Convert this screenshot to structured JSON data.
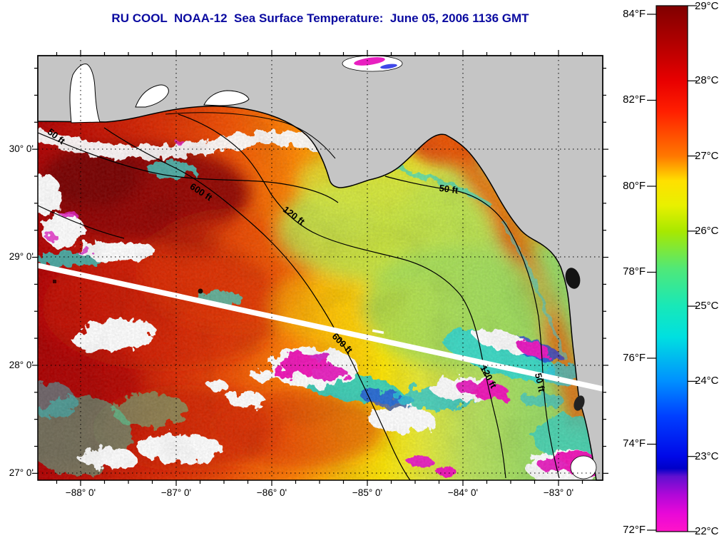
{
  "title": "RU COOL  NOAA-12  Sea Surface Temperature:  June 05, 2006 1136 GMT",
  "colors": {
    "title_text": "#0A0AA0",
    "land": "#C5C5C5",
    "coastline": "#000000",
    "scan_gap_streak": "#FFFFFF",
    "grid": "#000000"
  },
  "map": {
    "x_tick_labels": [
      "−88° 0'",
      "−87° 0'",
      "−86° 0'",
      "−85° 0'",
      "−84° 0'",
      "−83° 0'"
    ],
    "y_tick_labels": [
      "30° 0'",
      "29° 0'",
      "28° 0'",
      "27° 0'"
    ],
    "contour_labels": [
      "50 ft",
      "600 ft",
      "120 ft",
      "50 ft",
      "600 ft",
      "120 ft",
      "50 ft"
    ]
  },
  "colorbar": {
    "celsius_labels": [
      "29°C",
      "28°C",
      "27°C",
      "26°C",
      "25°C",
      "24°C",
      "23°C",
      "22°C"
    ],
    "fahrenheit_labels": [
      "84°F",
      "82°F",
      "80°F",
      "78°F",
      "76°F",
      "74°F",
      "72°F"
    ],
    "min_celsius": 22,
    "max_celsius": 29
  }
}
